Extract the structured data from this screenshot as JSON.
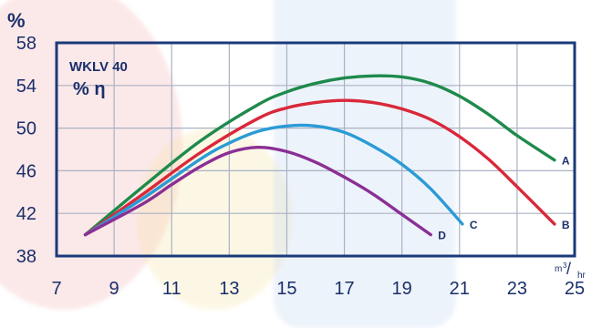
{
  "chart_data": {
    "type": "line",
    "title": "WKLV 40",
    "subtitle": "% η",
    "ylabel": "%",
    "xlabel_unit_base": "m",
    "xlabel_unit_exp": "3",
    "xlabel_unit_den": "hr",
    "xlim": [
      7,
      25
    ],
    "ylim": [
      38,
      58
    ],
    "x_ticks": [
      "7",
      "9",
      "11",
      "13",
      "15",
      "17",
      "19",
      "21",
      "23",
      "25"
    ],
    "y_ticks": [
      "58",
      "54",
      "50",
      "46",
      "42",
      "38"
    ],
    "grid": true,
    "series": [
      {
        "name": "A",
        "color": "#1e8a4c",
        "x": [
          8,
          10,
          12,
          14,
          15,
          16,
          17,
          18,
          19,
          20,
          21,
          22,
          23,
          24.3
        ],
        "y": [
          40,
          44.5,
          48.8,
          52.2,
          53.4,
          54.2,
          54.7,
          54.9,
          54.8,
          54.2,
          53,
          51.3,
          49.3,
          47
        ]
      },
      {
        "name": "B",
        "color": "#d9283a",
        "x": [
          8,
          10,
          12,
          14,
          15,
          16,
          17,
          18,
          19,
          20,
          21,
          22,
          23,
          24.3
        ],
        "y": [
          40,
          43.8,
          47.7,
          50.9,
          51.9,
          52.4,
          52.6,
          52.4,
          51.8,
          50.8,
          49.2,
          47.1,
          44.5,
          41
        ]
      },
      {
        "name": "C",
        "color": "#2a9bd6",
        "x": [
          8,
          10,
          12,
          13,
          14,
          15,
          16,
          17,
          18,
          19,
          20,
          21.1
        ],
        "y": [
          40,
          43.4,
          47.1,
          48.6,
          49.7,
          50.2,
          50.2,
          49.6,
          48.3,
          46.6,
          44.3,
          41
        ]
      },
      {
        "name": "D",
        "color": "#8b2f95",
        "x": [
          8,
          10,
          11,
          12,
          13,
          14,
          15,
          16,
          17,
          18,
          19,
          20
        ],
        "y": [
          40,
          42.9,
          44.7,
          46.4,
          47.7,
          48.2,
          47.8,
          46.8,
          45.4,
          43.8,
          41.9,
          40
        ]
      }
    ],
    "colors": {
      "frame": "#1a3a7a",
      "grid": "#a9b3c4",
      "text": "#1a2f6b"
    }
  }
}
